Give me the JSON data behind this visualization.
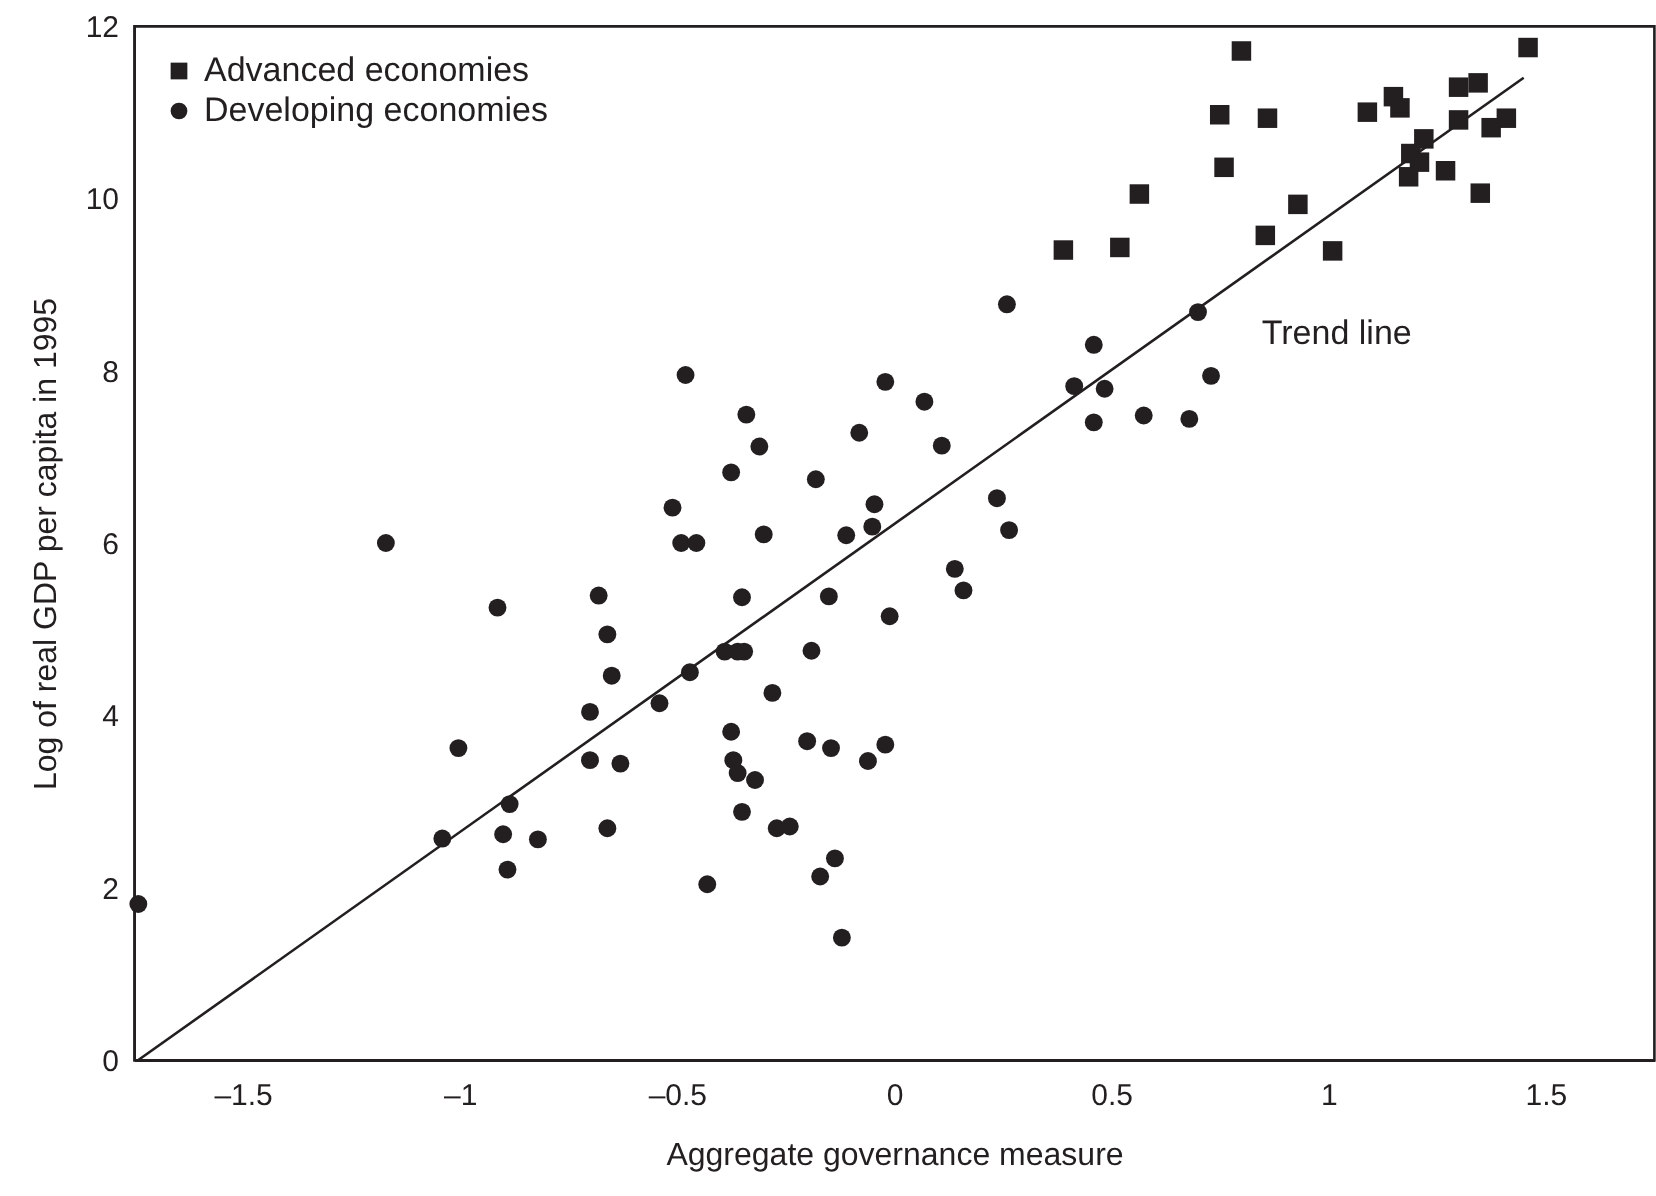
{
  "chart_data": {
    "type": "scatter",
    "xlabel": "Aggregate governance measure",
    "ylabel": "Log of real GDP per capita in 1995",
    "xlim": [
      -1.75,
      1.75
    ],
    "xticks": [
      {
        "value": -1.5,
        "label": "–1.5"
      },
      {
        "value": -1,
        "label": "–1"
      },
      {
        "value": -0.5,
        "label": "–0.5"
      },
      0,
      0.5,
      1,
      1.5
    ],
    "ylim": [
      0,
      12
    ],
    "yticks": [
      0,
      2,
      4,
      6,
      8,
      10,
      12
    ],
    "grid": false,
    "legend": "top left",
    "annotations": [
      {
        "text": "Trend line",
        "x": 0.81,
        "y": 9.12
      }
    ],
    "series": [
      {
        "name": "Advanced economies",
        "type": "scatter",
        "marker": "square",
        "color": "#231f20",
        "x": [
          0.8,
          1.46,
          0.75,
          0.86,
          1.09,
          1.15,
          1.165,
          1.3,
          1.345,
          1.3,
          1.375,
          1.41,
          1.22,
          1.19,
          1.21,
          1.185,
          1.27,
          1.35,
          0.76,
          0.565,
          0.93,
          0.855,
          0.39,
          0.52,
          1.01
        ],
        "values": [
          11.71,
          11.75,
          10.97,
          10.93,
          11.0,
          11.18,
          11.05,
          11.29,
          11.34,
          10.91,
          10.82,
          10.93,
          10.69,
          10.52,
          10.42,
          10.25,
          10.32,
          10.06,
          10.36,
          10.05,
          9.93,
          9.57,
          9.4,
          9.43,
          9.39
        ]
      },
      {
        "name": "Developing economies",
        "type": "scatter",
        "marker": "circle",
        "color": "#231f20",
        "x": [
          -1.17,
          -0.48,
          -0.34,
          -0.31,
          -0.375,
          -0.18,
          -0.02,
          -0.08,
          -0.51,
          -0.045,
          -0.49,
          -0.455,
          -0.3,
          -0.11,
          -0.05,
          -0.913,
          -0.68,
          -0.66,
          -0.65,
          -0.7,
          -1.003,
          -0.7,
          -0.63,
          -0.885,
          -1.04,
          -0.9,
          -0.82,
          -0.89,
          -0.66,
          -1.74,
          -0.35,
          -0.39,
          -0.36,
          -0.345,
          -0.47,
          -0.15,
          -0.01,
          -0.19,
          -0.54,
          -0.28,
          -0.375,
          -0.37,
          -0.36,
          -0.32,
          -0.2,
          -0.145,
          -0.02,
          -0.06,
          -0.35,
          -0.27,
          -0.24,
          -0.43,
          -0.136,
          -0.17,
          -0.12,
          0.26,
          0.7,
          0.46,
          0.415,
          0.485,
          0.73,
          0.46,
          0.575,
          0.68,
          0.07,
          0.11,
          0.237,
          0.265,
          0.14,
          0.16
        ],
        "values": [
          6.0,
          7.95,
          7.49,
          7.12,
          6.82,
          6.74,
          7.87,
          7.28,
          6.41,
          6.45,
          6.0,
          6.0,
          6.1,
          6.09,
          6.19,
          5.25,
          5.39,
          4.94,
          4.46,
          4.04,
          3.62,
          3.48,
          3.44,
          2.97,
          2.57,
          2.62,
          2.56,
          2.21,
          2.69,
          1.81,
          5.37,
          4.74,
          4.74,
          4.74,
          4.5,
          5.38,
          5.15,
          4.75,
          4.14,
          4.26,
          3.81,
          3.48,
          3.33,
          3.25,
          3.7,
          3.62,
          3.66,
          3.47,
          2.88,
          2.69,
          2.71,
          2.04,
          2.34,
          2.13,
          1.42,
          8.77,
          8.68,
          8.3,
          7.82,
          7.79,
          7.94,
          7.4,
          7.48,
          7.44,
          7.64,
          7.13,
          6.52,
          6.15,
          5.7,
          5.45
        ]
      },
      {
        "type": "line",
        "color": "#231f20",
        "line_style": "solid",
        "x": [
          -1.74,
          1.45
        ],
        "values": [
          0,
          11.4
        ]
      }
    ]
  }
}
